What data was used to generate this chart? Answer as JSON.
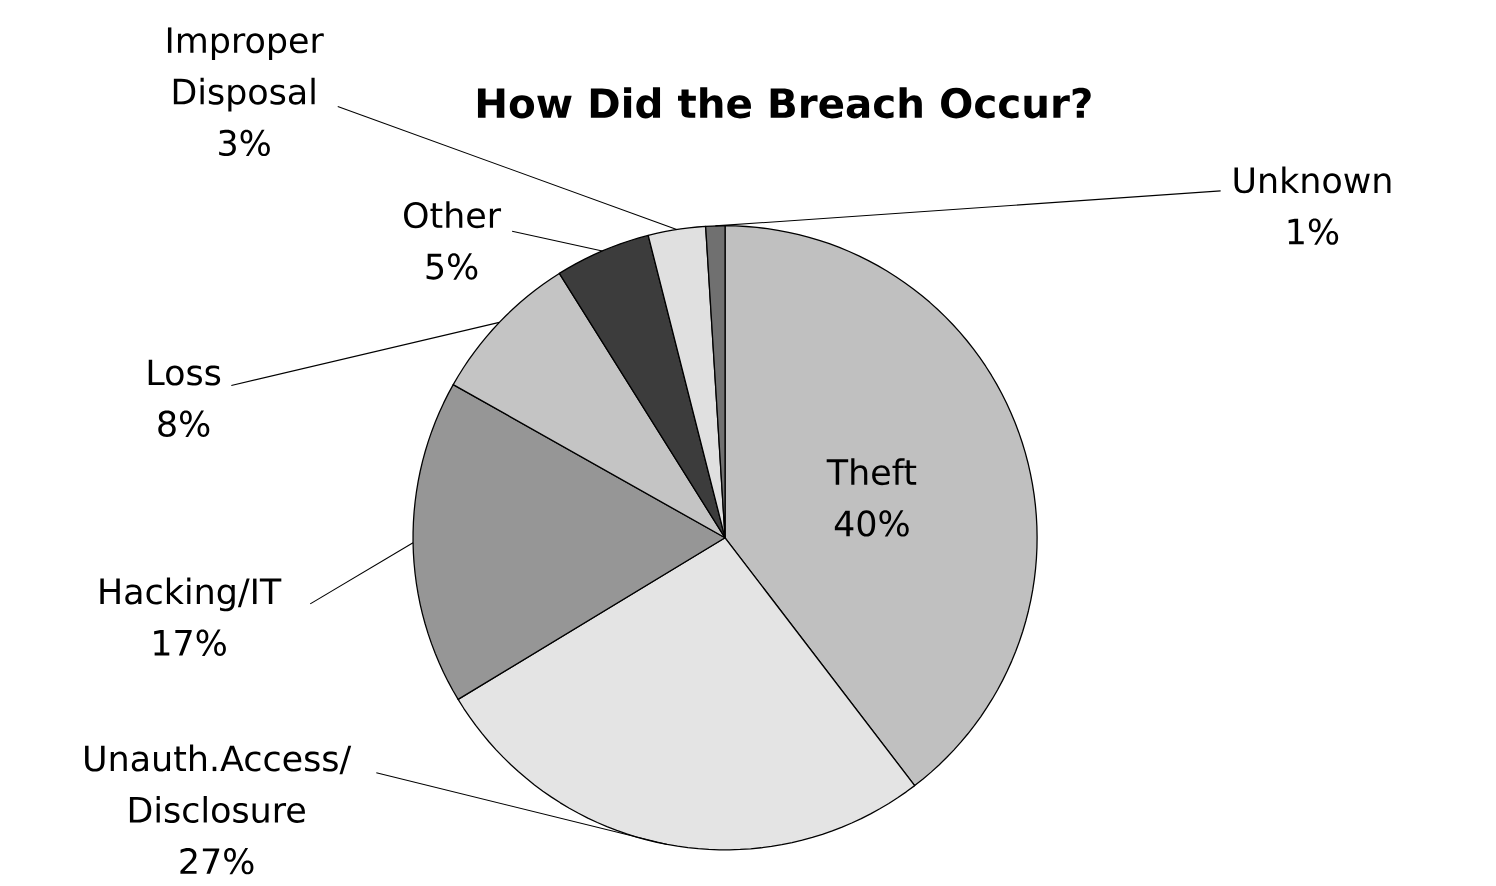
{
  "chart_data": {
    "type": "pie",
    "title": "How Did the Breach Occur?",
    "categories": [
      "Theft",
      "Unauth.Access/ Disclosure",
      "Hacking/IT",
      "Loss",
      "Other",
      "Improper Disposal",
      "Unknown"
    ],
    "values": [
      40,
      27,
      17,
      8,
      5,
      3,
      1
    ],
    "value_labels": [
      "40%",
      "27%",
      "17%",
      "8%",
      "5%",
      "3%",
      "1%"
    ],
    "colors": [
      "#c0c0c0",
      "#e4e4e4",
      "#969696",
      "#c4c4c4",
      "#3c3c3c",
      "#e0e0e0",
      "#707070"
    ]
  }
}
